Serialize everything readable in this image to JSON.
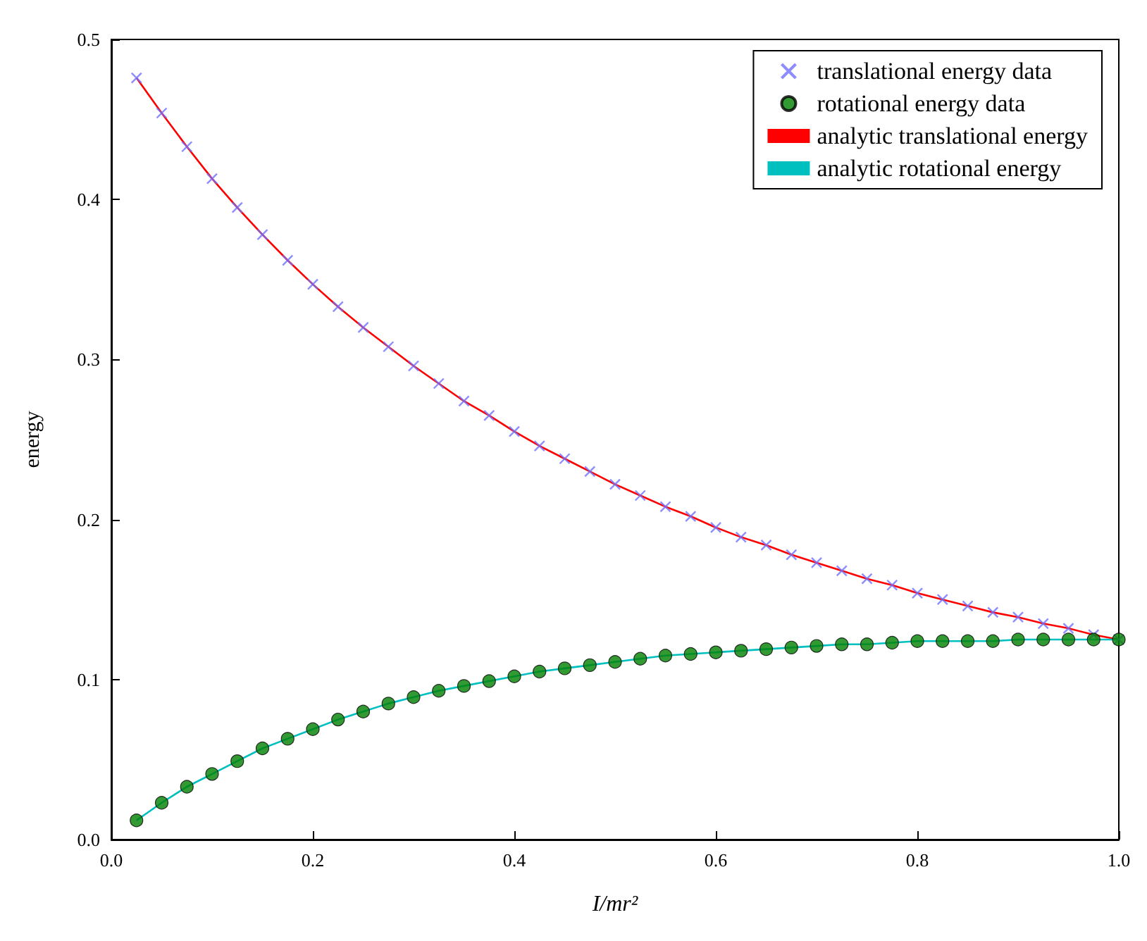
{
  "chart_data": {
    "type": "scatter",
    "xlabel": "I/mr²",
    "ylabel": "energy",
    "x": [
      0.025,
      0.05,
      0.075,
      0.1,
      0.125,
      0.15,
      0.175,
      0.2,
      0.225,
      0.25,
      0.275,
      0.3,
      0.325,
      0.35,
      0.375,
      0.4,
      0.425,
      0.45,
      0.475,
      0.5,
      0.525,
      0.55,
      0.575,
      0.6,
      0.625,
      0.65,
      0.675,
      0.7,
      0.725,
      0.75,
      0.775,
      0.8,
      0.825,
      0.85,
      0.875,
      0.9,
      0.925,
      0.95,
      0.975,
      1.0
    ],
    "series": [
      {
        "name": "translational energy data",
        "type": "scatter",
        "marker": "cross",
        "color": "#7070ff",
        "values": [
          0.476,
          0.454,
          0.433,
          0.413,
          0.395,
          0.378,
          0.362,
          0.347,
          0.333,
          0.32,
          0.308,
          0.296,
          0.285,
          0.274,
          0.265,
          0.255,
          0.246,
          0.238,
          0.23,
          0.222,
          0.215,
          0.208,
          0.202,
          0.195,
          0.189,
          0.184,
          0.178,
          0.173,
          0.168,
          0.163,
          0.159,
          0.154,
          0.15,
          0.146,
          0.142,
          0.139,
          0.135,
          0.132,
          0.128,
          0.125
        ]
      },
      {
        "name": "rotational energy data",
        "type": "scatter",
        "marker": "circle",
        "color": "#007f00",
        "values": [
          0.012,
          0.023,
          0.033,
          0.041,
          0.049,
          0.057,
          0.063,
          0.069,
          0.075,
          0.08,
          0.085,
          0.089,
          0.093,
          0.096,
          0.099,
          0.102,
          0.105,
          0.107,
          0.109,
          0.111,
          0.113,
          0.115,
          0.116,
          0.117,
          0.118,
          0.119,
          0.12,
          0.121,
          0.122,
          0.122,
          0.123,
          0.124,
          0.124,
          0.124,
          0.124,
          0.125,
          0.125,
          0.125,
          0.125,
          0.125
        ]
      },
      {
        "name": "analytic translational energy",
        "type": "line",
        "marker": "none",
        "color": "#ff0000",
        "values": [
          0.476,
          0.454,
          0.433,
          0.413,
          0.395,
          0.378,
          0.362,
          0.347,
          0.333,
          0.32,
          0.308,
          0.296,
          0.285,
          0.274,
          0.265,
          0.255,
          0.246,
          0.238,
          0.23,
          0.222,
          0.215,
          0.208,
          0.202,
          0.195,
          0.189,
          0.184,
          0.178,
          0.173,
          0.168,
          0.163,
          0.159,
          0.154,
          0.15,
          0.146,
          0.142,
          0.139,
          0.135,
          0.132,
          0.128,
          0.125
        ]
      },
      {
        "name": "analytic rotational energy",
        "type": "line",
        "marker": "none",
        "color": "#00bfbf",
        "values": [
          0.012,
          0.023,
          0.033,
          0.041,
          0.049,
          0.057,
          0.063,
          0.069,
          0.075,
          0.08,
          0.085,
          0.089,
          0.093,
          0.096,
          0.099,
          0.102,
          0.105,
          0.107,
          0.109,
          0.111,
          0.113,
          0.115,
          0.116,
          0.117,
          0.118,
          0.119,
          0.12,
          0.121,
          0.122,
          0.122,
          0.123,
          0.124,
          0.124,
          0.124,
          0.124,
          0.125,
          0.125,
          0.125,
          0.125,
          0.125
        ]
      }
    ],
    "xlim": [
      0,
      1
    ],
    "xticks": [
      {
        "value": 0,
        "label": "0.0"
      },
      {
        "value": 0.2,
        "label": "0.2"
      },
      {
        "value": 0.4,
        "label": "0.4"
      },
      {
        "value": 0.6,
        "label": "0.6"
      },
      {
        "value": 0.8,
        "label": "0.8"
      },
      {
        "value": 1,
        "label": "1.0"
      }
    ],
    "ylim": [
      0,
      0.5
    ],
    "yticks": [
      {
        "value": 0,
        "label": "0.0"
      },
      {
        "value": 0.1,
        "label": "0.1"
      },
      {
        "value": 0.2,
        "label": "0.2"
      },
      {
        "value": 0.3,
        "label": "0.3"
      },
      {
        "value": 0.4,
        "label": "0.4"
      },
      {
        "value": 0.5,
        "label": "0.5"
      }
    ],
    "grid": false,
    "legend": "top right"
  }
}
